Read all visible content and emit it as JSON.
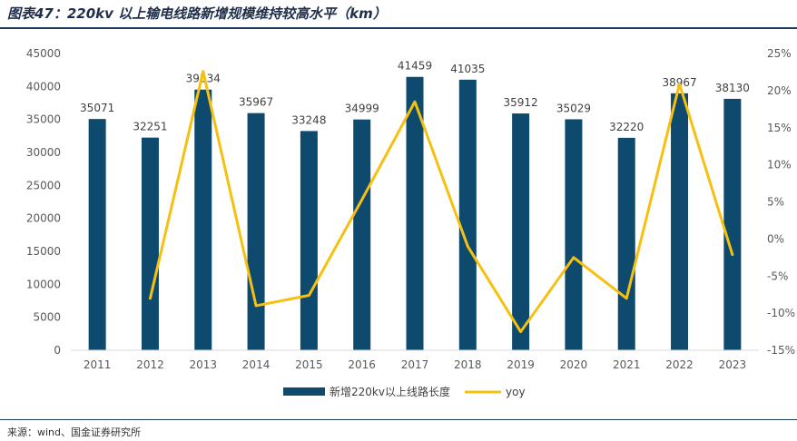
{
  "header": {
    "title": "图表47：220kv 以上输电线路新增规模维持较高水平（km）"
  },
  "footer": {
    "source": "来源：wind、国金证券研究所"
  },
  "chart_data": {
    "type": "bar",
    "categories": [
      "2011",
      "2012",
      "2013",
      "2014",
      "2015",
      "2016",
      "2017",
      "2018",
      "2019",
      "2020",
      "2021",
      "2022",
      "2023"
    ],
    "series": [
      {
        "name": "新增220kv以上线路长度",
        "type": "bar",
        "axis": "left",
        "color": "#0e4a6e",
        "values": [
          35071,
          32251,
          39534,
          35967,
          33248,
          34999,
          41459,
          41035,
          35912,
          35029,
          32220,
          38967,
          38130
        ]
      },
      {
        "name": "yoy",
        "type": "line",
        "axis": "right",
        "color": "#f7c010",
        "values": [
          null,
          -8.0,
          22.6,
          -9.0,
          -7.6,
          5.3,
          18.5,
          -1.0,
          -12.5,
          -2.5,
          -8.0,
          20.9,
          -2.1
        ]
      }
    ],
    "y_left": {
      "min": 0,
      "max": 45000,
      "step": 5000
    },
    "y_right": {
      "min": -15,
      "max": 25,
      "step": 5,
      "unit": "%"
    },
    "legend": {
      "position": "bottom"
    },
    "grid": false
  }
}
